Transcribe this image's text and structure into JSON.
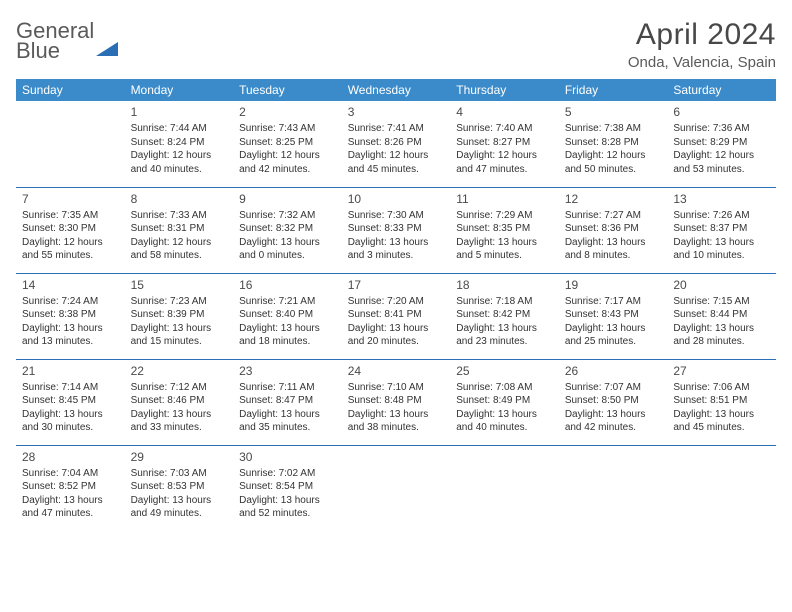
{
  "brand": {
    "name1": "General",
    "name2": "Blue"
  },
  "title": "April 2024",
  "location": "Onda, Valencia, Spain",
  "weekdays": [
    "Sunday",
    "Monday",
    "Tuesday",
    "Wednesday",
    "Thursday",
    "Friday",
    "Saturday"
  ],
  "colors": {
    "header_bg": "#3b8bca",
    "border": "#2a6fb5",
    "text": "#333333",
    "title": "#484848"
  },
  "weeks": [
    [
      {
        "n": "",
        "sr": "",
        "ss": "",
        "dl1": "",
        "dl2": ""
      },
      {
        "n": "1",
        "sr": "Sunrise: 7:44 AM",
        "ss": "Sunset: 8:24 PM",
        "dl1": "Daylight: 12 hours",
        "dl2": "and 40 minutes."
      },
      {
        "n": "2",
        "sr": "Sunrise: 7:43 AM",
        "ss": "Sunset: 8:25 PM",
        "dl1": "Daylight: 12 hours",
        "dl2": "and 42 minutes."
      },
      {
        "n": "3",
        "sr": "Sunrise: 7:41 AM",
        "ss": "Sunset: 8:26 PM",
        "dl1": "Daylight: 12 hours",
        "dl2": "and 45 minutes."
      },
      {
        "n": "4",
        "sr": "Sunrise: 7:40 AM",
        "ss": "Sunset: 8:27 PM",
        "dl1": "Daylight: 12 hours",
        "dl2": "and 47 minutes."
      },
      {
        "n": "5",
        "sr": "Sunrise: 7:38 AM",
        "ss": "Sunset: 8:28 PM",
        "dl1": "Daylight: 12 hours",
        "dl2": "and 50 minutes."
      },
      {
        "n": "6",
        "sr": "Sunrise: 7:36 AM",
        "ss": "Sunset: 8:29 PM",
        "dl1": "Daylight: 12 hours",
        "dl2": "and 53 minutes."
      }
    ],
    [
      {
        "n": "7",
        "sr": "Sunrise: 7:35 AM",
        "ss": "Sunset: 8:30 PM",
        "dl1": "Daylight: 12 hours",
        "dl2": "and 55 minutes."
      },
      {
        "n": "8",
        "sr": "Sunrise: 7:33 AM",
        "ss": "Sunset: 8:31 PM",
        "dl1": "Daylight: 12 hours",
        "dl2": "and 58 minutes."
      },
      {
        "n": "9",
        "sr": "Sunrise: 7:32 AM",
        "ss": "Sunset: 8:32 PM",
        "dl1": "Daylight: 13 hours",
        "dl2": "and 0 minutes."
      },
      {
        "n": "10",
        "sr": "Sunrise: 7:30 AM",
        "ss": "Sunset: 8:33 PM",
        "dl1": "Daylight: 13 hours",
        "dl2": "and 3 minutes."
      },
      {
        "n": "11",
        "sr": "Sunrise: 7:29 AM",
        "ss": "Sunset: 8:35 PM",
        "dl1": "Daylight: 13 hours",
        "dl2": "and 5 minutes."
      },
      {
        "n": "12",
        "sr": "Sunrise: 7:27 AM",
        "ss": "Sunset: 8:36 PM",
        "dl1": "Daylight: 13 hours",
        "dl2": "and 8 minutes."
      },
      {
        "n": "13",
        "sr": "Sunrise: 7:26 AM",
        "ss": "Sunset: 8:37 PM",
        "dl1": "Daylight: 13 hours",
        "dl2": "and 10 minutes."
      }
    ],
    [
      {
        "n": "14",
        "sr": "Sunrise: 7:24 AM",
        "ss": "Sunset: 8:38 PM",
        "dl1": "Daylight: 13 hours",
        "dl2": "and 13 minutes."
      },
      {
        "n": "15",
        "sr": "Sunrise: 7:23 AM",
        "ss": "Sunset: 8:39 PM",
        "dl1": "Daylight: 13 hours",
        "dl2": "and 15 minutes."
      },
      {
        "n": "16",
        "sr": "Sunrise: 7:21 AM",
        "ss": "Sunset: 8:40 PM",
        "dl1": "Daylight: 13 hours",
        "dl2": "and 18 minutes."
      },
      {
        "n": "17",
        "sr": "Sunrise: 7:20 AM",
        "ss": "Sunset: 8:41 PM",
        "dl1": "Daylight: 13 hours",
        "dl2": "and 20 minutes."
      },
      {
        "n": "18",
        "sr": "Sunrise: 7:18 AM",
        "ss": "Sunset: 8:42 PM",
        "dl1": "Daylight: 13 hours",
        "dl2": "and 23 minutes."
      },
      {
        "n": "19",
        "sr": "Sunrise: 7:17 AM",
        "ss": "Sunset: 8:43 PM",
        "dl1": "Daylight: 13 hours",
        "dl2": "and 25 minutes."
      },
      {
        "n": "20",
        "sr": "Sunrise: 7:15 AM",
        "ss": "Sunset: 8:44 PM",
        "dl1": "Daylight: 13 hours",
        "dl2": "and 28 minutes."
      }
    ],
    [
      {
        "n": "21",
        "sr": "Sunrise: 7:14 AM",
        "ss": "Sunset: 8:45 PM",
        "dl1": "Daylight: 13 hours",
        "dl2": "and 30 minutes."
      },
      {
        "n": "22",
        "sr": "Sunrise: 7:12 AM",
        "ss": "Sunset: 8:46 PM",
        "dl1": "Daylight: 13 hours",
        "dl2": "and 33 minutes."
      },
      {
        "n": "23",
        "sr": "Sunrise: 7:11 AM",
        "ss": "Sunset: 8:47 PM",
        "dl1": "Daylight: 13 hours",
        "dl2": "and 35 minutes."
      },
      {
        "n": "24",
        "sr": "Sunrise: 7:10 AM",
        "ss": "Sunset: 8:48 PM",
        "dl1": "Daylight: 13 hours",
        "dl2": "and 38 minutes."
      },
      {
        "n": "25",
        "sr": "Sunrise: 7:08 AM",
        "ss": "Sunset: 8:49 PM",
        "dl1": "Daylight: 13 hours",
        "dl2": "and 40 minutes."
      },
      {
        "n": "26",
        "sr": "Sunrise: 7:07 AM",
        "ss": "Sunset: 8:50 PM",
        "dl1": "Daylight: 13 hours",
        "dl2": "and 42 minutes."
      },
      {
        "n": "27",
        "sr": "Sunrise: 7:06 AM",
        "ss": "Sunset: 8:51 PM",
        "dl1": "Daylight: 13 hours",
        "dl2": "and 45 minutes."
      }
    ],
    [
      {
        "n": "28",
        "sr": "Sunrise: 7:04 AM",
        "ss": "Sunset: 8:52 PM",
        "dl1": "Daylight: 13 hours",
        "dl2": "and 47 minutes."
      },
      {
        "n": "29",
        "sr": "Sunrise: 7:03 AM",
        "ss": "Sunset: 8:53 PM",
        "dl1": "Daylight: 13 hours",
        "dl2": "and 49 minutes."
      },
      {
        "n": "30",
        "sr": "Sunrise: 7:02 AM",
        "ss": "Sunset: 8:54 PM",
        "dl1": "Daylight: 13 hours",
        "dl2": "and 52 minutes."
      },
      {
        "n": "",
        "sr": "",
        "ss": "",
        "dl1": "",
        "dl2": ""
      },
      {
        "n": "",
        "sr": "",
        "ss": "",
        "dl1": "",
        "dl2": ""
      },
      {
        "n": "",
        "sr": "",
        "ss": "",
        "dl1": "",
        "dl2": ""
      },
      {
        "n": "",
        "sr": "",
        "ss": "",
        "dl1": "",
        "dl2": ""
      }
    ]
  ]
}
